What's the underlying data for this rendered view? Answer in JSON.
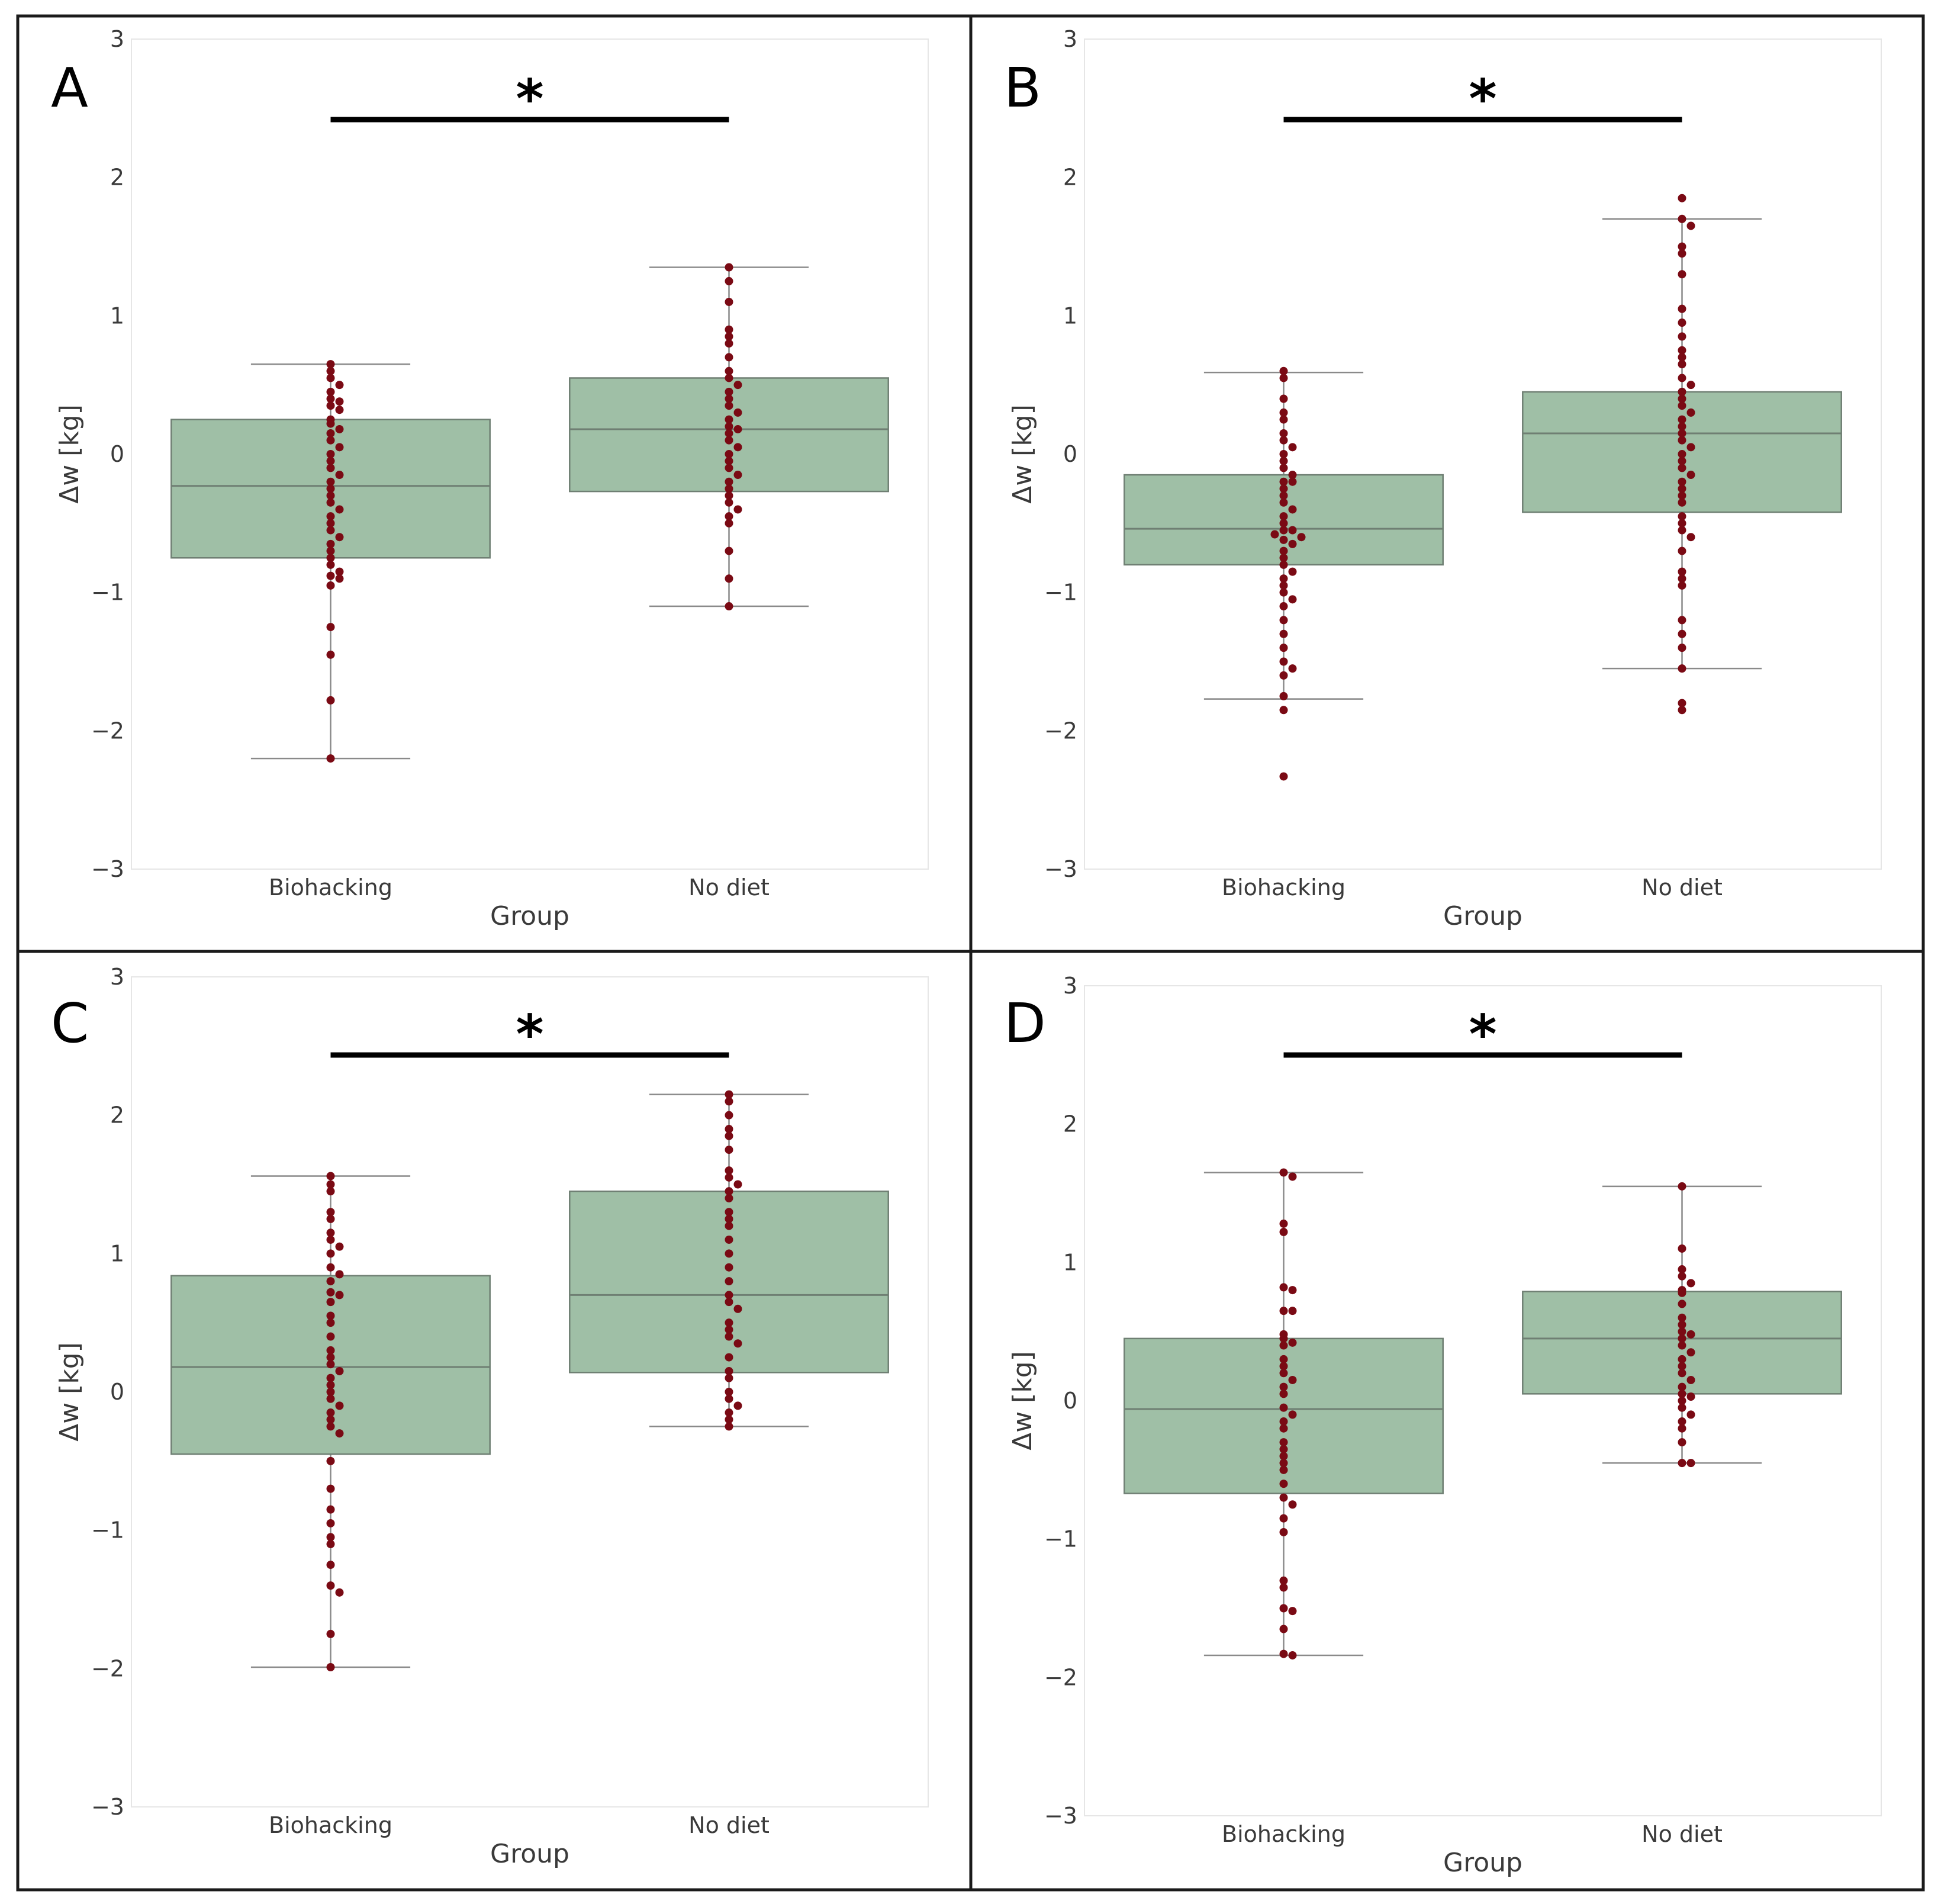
{
  "figure": {
    "background": "#ffffff",
    "border_color": "#1a1a1a",
    "box_color": "#9fbfa6",
    "point_color": "#7a0a14"
  },
  "chart_data": [
    {
      "type": "box+swarm",
      "panel_label": "A",
      "xlabel": "Group",
      "ylabel": "Δw [kg]",
      "ylim": [
        -3,
        3
      ],
      "yticks": [
        "−3",
        "−2",
        "−1",
        "0",
        "1",
        "2",
        "3"
      ],
      "yticks_values": [
        -3,
        -2,
        -1,
        0,
        1,
        2,
        3
      ],
      "categories": [
        "Biohacking",
        "No diet"
      ],
      "significance": "*",
      "boxes": [
        {
          "q1": -0.75,
          "median": -0.23,
          "q3": 0.25,
          "whisker_low": -2.2,
          "whisker_high": 0.65
        },
        {
          "q1": -0.27,
          "median": 0.18,
          "q3": 0.55,
          "whisker_low": -1.1,
          "whisker_high": 1.35
        }
      ],
      "points": [
        [
          0.65,
          0.6,
          0.55,
          0.5,
          0.45,
          0.4,
          0.38,
          0.35,
          0.32,
          0.25,
          0.22,
          0.18,
          0.15,
          0.1,
          0.05,
          0,
          -0.05,
          -0.1,
          -0.15,
          -0.2,
          -0.25,
          -0.3,
          -0.35,
          -0.4,
          -0.45,
          -0.5,
          -0.55,
          -0.6,
          -0.65,
          -0.7,
          -0.75,
          -0.8,
          -0.85,
          -0.88,
          -0.9,
          -0.95,
          -1.25,
          -1.45,
          -1.78,
          -2.2
        ],
        [
          1.35,
          1.25,
          1.1,
          0.9,
          0.85,
          0.8,
          0.7,
          0.6,
          0.55,
          0.5,
          0.45,
          0.4,
          0.35,
          0.3,
          0.25,
          0.2,
          0.18,
          0.15,
          0.1,
          0.05,
          0,
          -0.05,
          -0.1,
          -0.15,
          -0.2,
          -0.25,
          -0.3,
          -0.35,
          -0.4,
          -0.45,
          -0.5,
          -0.7,
          -0.9,
          -1.1
        ]
      ]
    },
    {
      "type": "box+swarm",
      "panel_label": "B",
      "xlabel": "Group",
      "ylabel": "Δw [kg]",
      "ylim": [
        -3,
        3
      ],
      "yticks": [
        "−3",
        "−2",
        "−1",
        "0",
        "1",
        "2",
        "3"
      ],
      "yticks_values": [
        -3,
        -2,
        -1,
        0,
        1,
        2,
        3
      ],
      "categories": [
        "Biohacking",
        "No diet"
      ],
      "significance": "*",
      "boxes": [
        {
          "q1": -0.8,
          "median": -0.54,
          "q3": -0.15,
          "whisker_low": -1.77,
          "whisker_high": 0.59
        },
        {
          "q1": -0.42,
          "median": 0.15,
          "q3": 0.45,
          "whisker_low": -1.55,
          "whisker_high": 1.7
        }
      ],
      "points": [
        [
          0.6,
          0.55,
          0.4,
          0.3,
          0.25,
          0.15,
          0.1,
          0.05,
          0,
          -0.05,
          -0.1,
          -0.15,
          -0.2,
          -0.2,
          -0.25,
          -0.3,
          -0.35,
          -0.4,
          -0.45,
          -0.5,
          -0.55,
          -0.55,
          -0.58,
          -0.6,
          -0.62,
          -0.65,
          -0.7,
          -0.75,
          -0.8,
          -0.85,
          -0.9,
          -0.95,
          -1.0,
          -1.05,
          -1.1,
          -1.2,
          -1.3,
          -1.4,
          -1.5,
          -1.55,
          -1.6,
          -1.75,
          -1.85,
          -2.33
        ],
        [
          1.85,
          1.7,
          1.65,
          1.5,
          1.45,
          1.3,
          1.05,
          0.95,
          0.85,
          0.75,
          0.7,
          0.65,
          0.55,
          0.5,
          0.45,
          0.4,
          0.35,
          0.3,
          0.25,
          0.2,
          0.15,
          0.1,
          0.05,
          0,
          -0.05,
          -0.1,
          -0.15,
          -0.2,
          -0.25,
          -0.3,
          -0.35,
          -0.45,
          -0.5,
          -0.55,
          -0.6,
          -0.7,
          -0.85,
          -0.9,
          -0.95,
          -1.2,
          -1.3,
          -1.4,
          -1.55,
          -1.8,
          -1.85
        ]
      ]
    },
    {
      "type": "box+swarm",
      "panel_label": "C",
      "xlabel": "Group",
      "ylabel": "Δw [kg]",
      "ylim": [
        -3,
        3
      ],
      "yticks": [
        "−3",
        "−2",
        "−1",
        "0",
        "1",
        "2",
        "3"
      ],
      "yticks_values": [
        -3,
        -2,
        -1,
        0,
        1,
        2,
        3
      ],
      "categories": [
        "Biohacking",
        "No diet"
      ],
      "significance": "*",
      "boxes": [
        {
          "q1": -0.45,
          "median": 0.18,
          "q3": 0.84,
          "whisker_low": -1.99,
          "whisker_high": 1.56
        },
        {
          "q1": 0.14,
          "median": 0.7,
          "q3": 1.45,
          "whisker_low": -0.25,
          "whisker_high": 2.15
        }
      ],
      "points": [
        [
          1.56,
          1.5,
          1.45,
          1.3,
          1.25,
          1.15,
          1.1,
          1.05,
          1.0,
          0.9,
          0.85,
          0.8,
          0.72,
          0.7,
          0.65,
          0.55,
          0.5,
          0.4,
          0.3,
          0.25,
          0.2,
          0.15,
          0.1,
          0.05,
          0,
          -0.05,
          -0.1,
          -0.15,
          -0.2,
          -0.25,
          -0.3,
          -0.5,
          -0.7,
          -0.85,
          -0.95,
          -1.05,
          -1.1,
          -1.25,
          -1.4,
          -1.45,
          -1.75,
          -1.99
        ],
        [
          2.15,
          2.1,
          2.0,
          1.9,
          1.85,
          1.75,
          1.6,
          1.55,
          1.5,
          1.45,
          1.4,
          1.3,
          1.25,
          1.2,
          1.1,
          1.0,
          0.9,
          0.8,
          0.7,
          0.65,
          0.6,
          0.5,
          0.45,
          0.4,
          0.35,
          0.25,
          0.15,
          0.1,
          0,
          -0.05,
          -0.1,
          -0.15,
          -0.2,
          -0.25
        ]
      ]
    },
    {
      "type": "box+swarm",
      "panel_label": "D",
      "xlabel": "Group",
      "ylabel": "Δw [kg]",
      "ylim": [
        -3,
        3
      ],
      "yticks": [
        "−3",
        "−2",
        "−1",
        "0",
        "1",
        "2",
        "3"
      ],
      "yticks_values": [
        -3,
        -2,
        -1,
        0,
        1,
        2,
        3
      ],
      "categories": [
        "Biohacking",
        "No diet"
      ],
      "significance": "*",
      "boxes": [
        {
          "q1": -0.67,
          "median": -0.06,
          "q3": 0.45,
          "whisker_low": -1.84,
          "whisker_high": 1.65
        },
        {
          "q1": 0.05,
          "median": 0.45,
          "q3": 0.79,
          "whisker_low": -0.45,
          "whisker_high": 1.55
        }
      ],
      "points": [
        [
          1.65,
          1.62,
          1.28,
          1.22,
          0.82,
          0.8,
          0.65,
          0.65,
          0.48,
          0.45,
          0.42,
          0.4,
          0.3,
          0.25,
          0.2,
          0.15,
          0.1,
          0.05,
          -0.05,
          -0.1,
          -0.15,
          -0.2,
          -0.3,
          -0.35,
          -0.4,
          -0.45,
          -0.5,
          -0.6,
          -0.7,
          -0.75,
          -0.85,
          -0.95,
          -1.3,
          -1.35,
          -1.5,
          -1.52,
          -1.65,
          -1.83,
          -1.84
        ],
        [
          1.55,
          1.1,
          0.95,
          0.9,
          0.85,
          0.8,
          0.78,
          0.7,
          0.6,
          0.55,
          0.5,
          0.48,
          0.45,
          0.4,
          0.35,
          0.3,
          0.25,
          0.2,
          0.15,
          0.1,
          0.05,
          0.03,
          0,
          -0.05,
          -0.1,
          -0.15,
          -0.2,
          -0.3,
          -0.45,
          -0.45
        ]
      ]
    }
  ]
}
